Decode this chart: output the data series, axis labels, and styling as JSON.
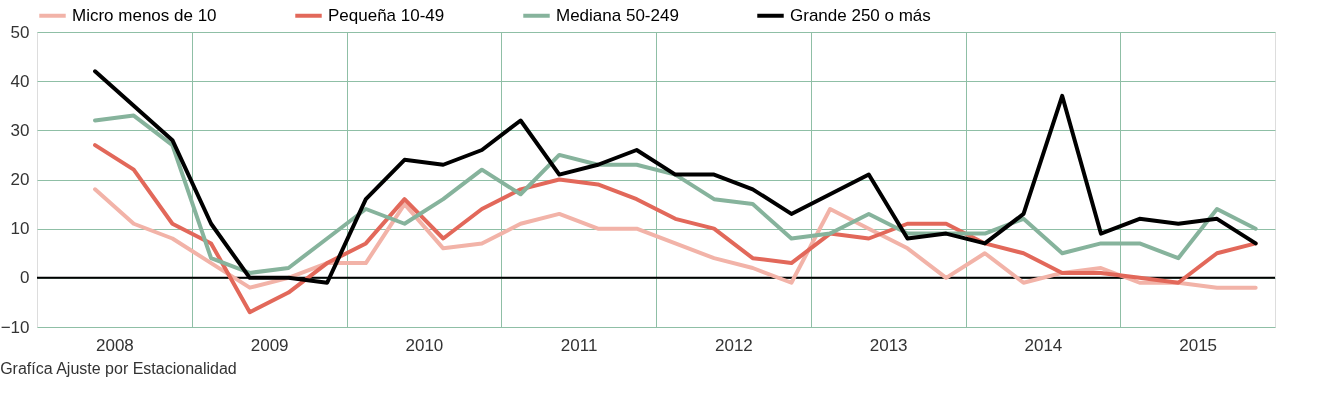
{
  "chart_data": {
    "type": "line",
    "x": [
      2008.375,
      2008.625,
      2008.875,
      2009.125,
      2009.375,
      2009.625,
      2009.875,
      2010.125,
      2010.375,
      2010.625,
      2010.875,
      2011.125,
      2011.375,
      2011.625,
      2011.875,
      2012.125,
      2012.375,
      2012.625,
      2012.875,
      2013.125,
      2013.375,
      2013.625,
      2013.875,
      2014.125,
      2014.375,
      2014.625,
      2014.875,
      2015.125,
      2015.375,
      2015.625,
      2015.875
    ],
    "series": [
      {
        "name": "Micro menos de 10",
        "color": "#f2b3a8",
        "values": [
          18,
          11,
          8,
          3,
          -2,
          0,
          3,
          3,
          15,
          6,
          7,
          11,
          13,
          10,
          10,
          7,
          4,
          2,
          -1,
          14,
          10,
          6,
          0,
          5,
          -1,
          1,
          2,
          -1,
          -1,
          -2,
          -2
        ]
      },
      {
        "name": "Pequeña 10-49",
        "color": "#e2685a",
        "values": [
          27,
          22,
          11,
          7,
          -7,
          -3,
          3,
          7,
          16,
          8,
          14,
          18,
          20,
          19,
          16,
          12,
          10,
          4,
          3,
          9,
          8,
          11,
          11,
          7,
          5,
          1,
          1,
          0,
          -1,
          5,
          7
        ]
      },
      {
        "name": "Mediana 50-249",
        "color": "#86b39c",
        "values": [
          32,
          33,
          27,
          4,
          1,
          2,
          8,
          14,
          11,
          16,
          22,
          17,
          25,
          23,
          23,
          21,
          16,
          15,
          8,
          9,
          13,
          9,
          9,
          9,
          12,
          5,
          7,
          7,
          4,
          14,
          10
        ]
      },
      {
        "name": "Grande 250 o más",
        "color": "#000000",
        "values": [
          42,
          35,
          28,
          11,
          0,
          0,
          -1,
          16,
          24,
          23,
          26,
          32,
          21,
          23,
          26,
          21,
          21,
          18,
          13,
          17,
          21,
          8,
          9,
          7,
          13,
          37,
          9,
          12,
          11,
          12,
          7
        ]
      }
    ],
    "xlim": [
      2008.0,
      2016.0
    ],
    "xticks": [
      {
        "value": 2008.5,
        "label": "2008"
      },
      {
        "value": 2009,
        "label": null
      },
      {
        "value": 2009.5,
        "label": "2009"
      },
      {
        "value": 2010,
        "label": null
      },
      {
        "value": 2010.5,
        "label": "2010"
      },
      {
        "value": 2011,
        "label": null
      },
      {
        "value": 2011.5,
        "label": "2011"
      },
      {
        "value": 2012,
        "label": null
      },
      {
        "value": 2012.5,
        "label": "2012"
      },
      {
        "value": 2013,
        "label": null
      },
      {
        "value": 2013.5,
        "label": "2013"
      },
      {
        "value": 2014,
        "label": null
      },
      {
        "value": 2014.5,
        "label": "2014"
      },
      {
        "value": 2015,
        "label": null
      },
      {
        "value": 2015.5,
        "label": "2015"
      }
    ],
    "ylim": [
      -10,
      50
    ],
    "yticks": [
      -10,
      0,
      10,
      20,
      30,
      40,
      50
    ],
    "ref_lines": [
      {
        "axis": "y",
        "value": 0,
        "color": "#000000"
      }
    ],
    "annotations": [
      "Grafíca Ajuste por Estacionalidad"
    ],
    "grid": true,
    "legend": "top",
    "line_style": "solid",
    "marker": "none"
  }
}
